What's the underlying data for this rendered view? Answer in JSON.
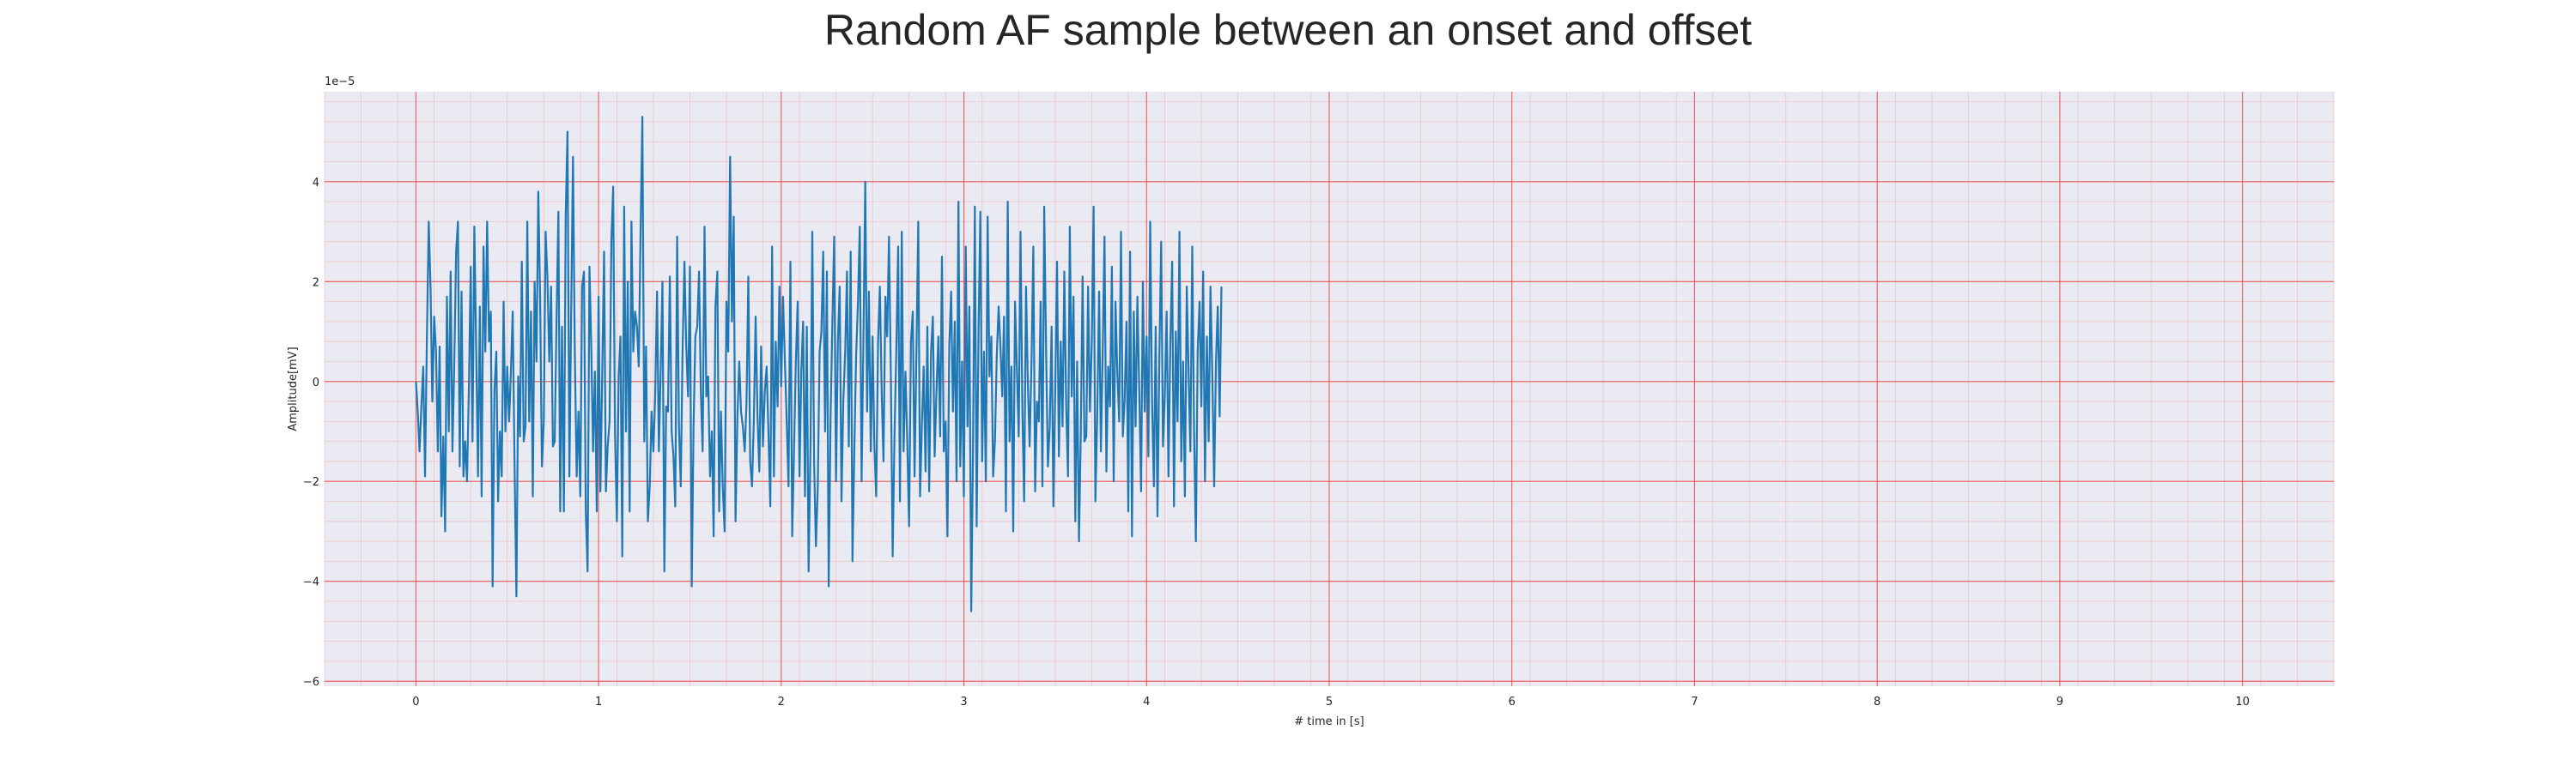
{
  "chart_data": {
    "type": "line",
    "title": "Random AF sample between an onset and offset",
    "xlabel": "# time in [s]",
    "ylabel": "Amplitude[mV]",
    "y_offset_text": "1e−5",
    "xlim": [
      -0.5,
      10.5
    ],
    "ylim": [
      -6.1,
      5.8
    ],
    "xticks": [
      0,
      1,
      2,
      3,
      4,
      5,
      6,
      7,
      8,
      9,
      10
    ],
    "yticks": [
      -6,
      -4,
      -2,
      0,
      2,
      4
    ],
    "grid": true,
    "minor_grid": true,
    "series": [
      {
        "x_start": 0,
        "x_step": 0.01,
        "values": [
          0.0,
          -0.6,
          -1.4,
          -0.5,
          0.3,
          -1.9,
          0.8,
          3.2,
          1.9,
          -0.4,
          1.3,
          0.6,
          -1.4,
          0.7,
          -2.7,
          -1.1,
          -3.0,
          1.7,
          -1.0,
          2.2,
          -1.4,
          0.3,
          2.6,
          3.2,
          -1.7,
          1.8,
          -1.9,
          -1.2,
          -2.0,
          -0.1,
          2.3,
          -1.2,
          3.1,
          0.6,
          -1.9,
          1.5,
          -2.3,
          2.7,
          0.6,
          3.2,
          0.8,
          1.4,
          -4.1,
          -0.2,
          0.6,
          -2.4,
          -1.0,
          -1.9,
          1.6,
          -1.0,
          0.3,
          -0.8,
          0.2,
          1.4,
          -1.6,
          -4.3,
          0.1,
          -1.1,
          2.4,
          -1.2,
          -0.9,
          3.2,
          -0.8,
          1.4,
          -2.3,
          2.0,
          0.4,
          3.8,
          1.7,
          -1.7,
          -0.8,
          3.0,
          2.1,
          0.4,
          1.9,
          -1.3,
          -1.2,
          1.3,
          3.4,
          -2.6,
          1.1,
          -2.6,
          3.3,
          5.0,
          -1.9,
          1.4,
          4.5,
          0.6,
          -1.9,
          -0.6,
          -2.3,
          1.9,
          2.2,
          -2.6,
          -3.8,
          2.3,
          0.7,
          -1.4,
          0.2,
          -2.6,
          1.7,
          -2.2,
          0.1,
          2.6,
          -2.2,
          -1.3,
          -0.8,
          2.8,
          3.9,
          -1.0,
          -2.8,
          0.1,
          0.9,
          -3.5,
          3.5,
          -1.0,
          2.0,
          -2.6,
          3.2,
          0.6,
          1.4,
          1.1,
          0.3,
          3.0,
          5.3,
          -1.2,
          0.7,
          -2.8,
          -2.1,
          -0.6,
          -1.4,
          -0.3,
          1.8,
          -1.4,
          0.2,
          2.0,
          -3.8,
          -0.5,
          -0.6,
          2.1,
          -1.0,
          -1.5,
          -2.5,
          2.9,
          -0.9,
          -2.1,
          0.6,
          2.4,
          0.7,
          -0.3,
          2.3,
          -4.1,
          -0.9,
          0.9,
          1.1,
          2.2,
          -0.2,
          -1.4,
          3.1,
          -0.3,
          0.1,
          -1.9,
          -1.0,
          -3.1,
          1.5,
          2.2,
          -2.6,
          -0.6,
          -2.1,
          -3.0,
          1.6,
          0.6,
          4.5,
          1.2,
          3.3,
          -2.8,
          -0.7,
          0.4,
          -0.6,
          -0.9,
          -1.4,
          -0.4,
          2.1,
          -1.6,
          -2.1,
          -0.8,
          1.3,
          -0.7,
          -1.8,
          0.7,
          -1.3,
          -0.2,
          0.3,
          -1.0,
          -2.5,
          2.7,
          -1.9,
          0.8,
          -0.5,
          1.9,
          -0.1,
          1.7,
          0.4,
          -0.8,
          -2.1,
          2.4,
          -3.1,
          -1.4,
          0.4,
          1.6,
          -1.9,
          0.2,
          1.2,
          -2.3,
          1.1,
          -3.8,
          -1.3,
          3.0,
          -1.6,
          -3.3,
          -2.1,
          0.6,
          1.0,
          2.6,
          -1.0,
          2.2,
          -4.1,
          -0.7,
          1.2,
          2.9,
          -2.0,
          0.8,
          1.9,
          -2.4,
          -0.4,
          0.6,
          2.2,
          -1.3,
          2.6,
          -3.6,
          -1.4,
          0.5,
          1.6,
          3.1,
          -2.0,
          0.8,
          4.0,
          -0.6,
          1.8,
          -1.4,
          0.9,
          -1.3,
          -2.3,
          0.8,
          1.9,
          -0.2,
          -1.6,
          1.7,
          0.9,
          2.9,
          0.1,
          -3.5,
          -1.1,
          0.6,
          2.7,
          -2.4,
          3.0,
          -1.4,
          0.2,
          -1.2,
          -2.9,
          0.8,
          1.4,
          -1.9,
          0.5,
          3.2,
          -2.3,
          -0.9,
          0.3,
          -1.8,
          1.1,
          -2.2,
          0.6,
          1.3,
          -1.5,
          -0.2,
          0.9,
          -1.1,
          2.5,
          -1.4,
          -0.8,
          -3.1,
          0.7,
          1.8,
          -0.6,
          1.2,
          -2.0,
          3.6,
          -1.7,
          0.4,
          -2.3,
          2.7,
          -0.9,
          1.5,
          -4.6,
          -1.3,
          3.5,
          -2.9,
          1.0,
          3.4,
          -1.6,
          0.6,
          -2.0,
          3.3,
          0.1,
          0.9,
          -1.9,
          -1.2,
          0.5,
          1.5,
          0.7,
          -0.3,
          1.3,
          -2.6,
          3.6,
          -1.2,
          0.3,
          -3.0,
          1.6,
          0.3,
          -1.1,
          3.0,
          -0.5,
          -2.4,
          1.9,
          0.0,
          -1.3,
          0.4,
          2.7,
          -2.2,
          -0.4,
          -0.8,
          1.6,
          -2.1,
          3.5,
          0.6,
          -1.7,
          -0.9,
          1.1,
          -2.5,
          -0.2,
          2.4,
          -1.5,
          0.8,
          -0.9,
          2.2,
          -0.5,
          -1.9,
          3.1,
          -0.3,
          1.7,
          -2.8,
          0.4,
          -3.2,
          -1.0,
          2.1,
          -1.2,
          -1.1,
          1.9,
          -0.6,
          0.8,
          3.5,
          -2.4,
          -0.7,
          1.8,
          -1.4,
          0.6,
          2.9,
          -1.8,
          0.3,
          -0.5,
          2.3,
          -2.0,
          1.6,
          0.2,
          -0.8,
          3.0,
          -1.1,
          -0.4,
          1.2,
          -2.6,
          2.6,
          -3.1,
          1.4,
          -0.9,
          1.7,
          -0.2,
          -2.2,
          2.0,
          -0.6,
          0.9,
          -1.5,
          3.2,
          -0.4,
          -2.1,
          1.1,
          -2.7,
          0.5,
          2.8,
          -1.3,
          -0.3,
          1.4,
          -1.9,
          0.7,
          2.4,
          -2.5,
          1.0,
          -0.8,
          3.0,
          -1.6,
          0.4,
          -2.3,
          1.9,
          0.2,
          -1.4,
          2.7,
          -1.0,
          -3.2,
          0.6,
          1.6,
          -0.5,
          2.2,
          -2.0,
          0.9,
          -1.2,
          1.9,
          0.1,
          -2.1,
          0.4,
          1.5,
          -0.7,
          1.9
        ]
      }
    ]
  }
}
